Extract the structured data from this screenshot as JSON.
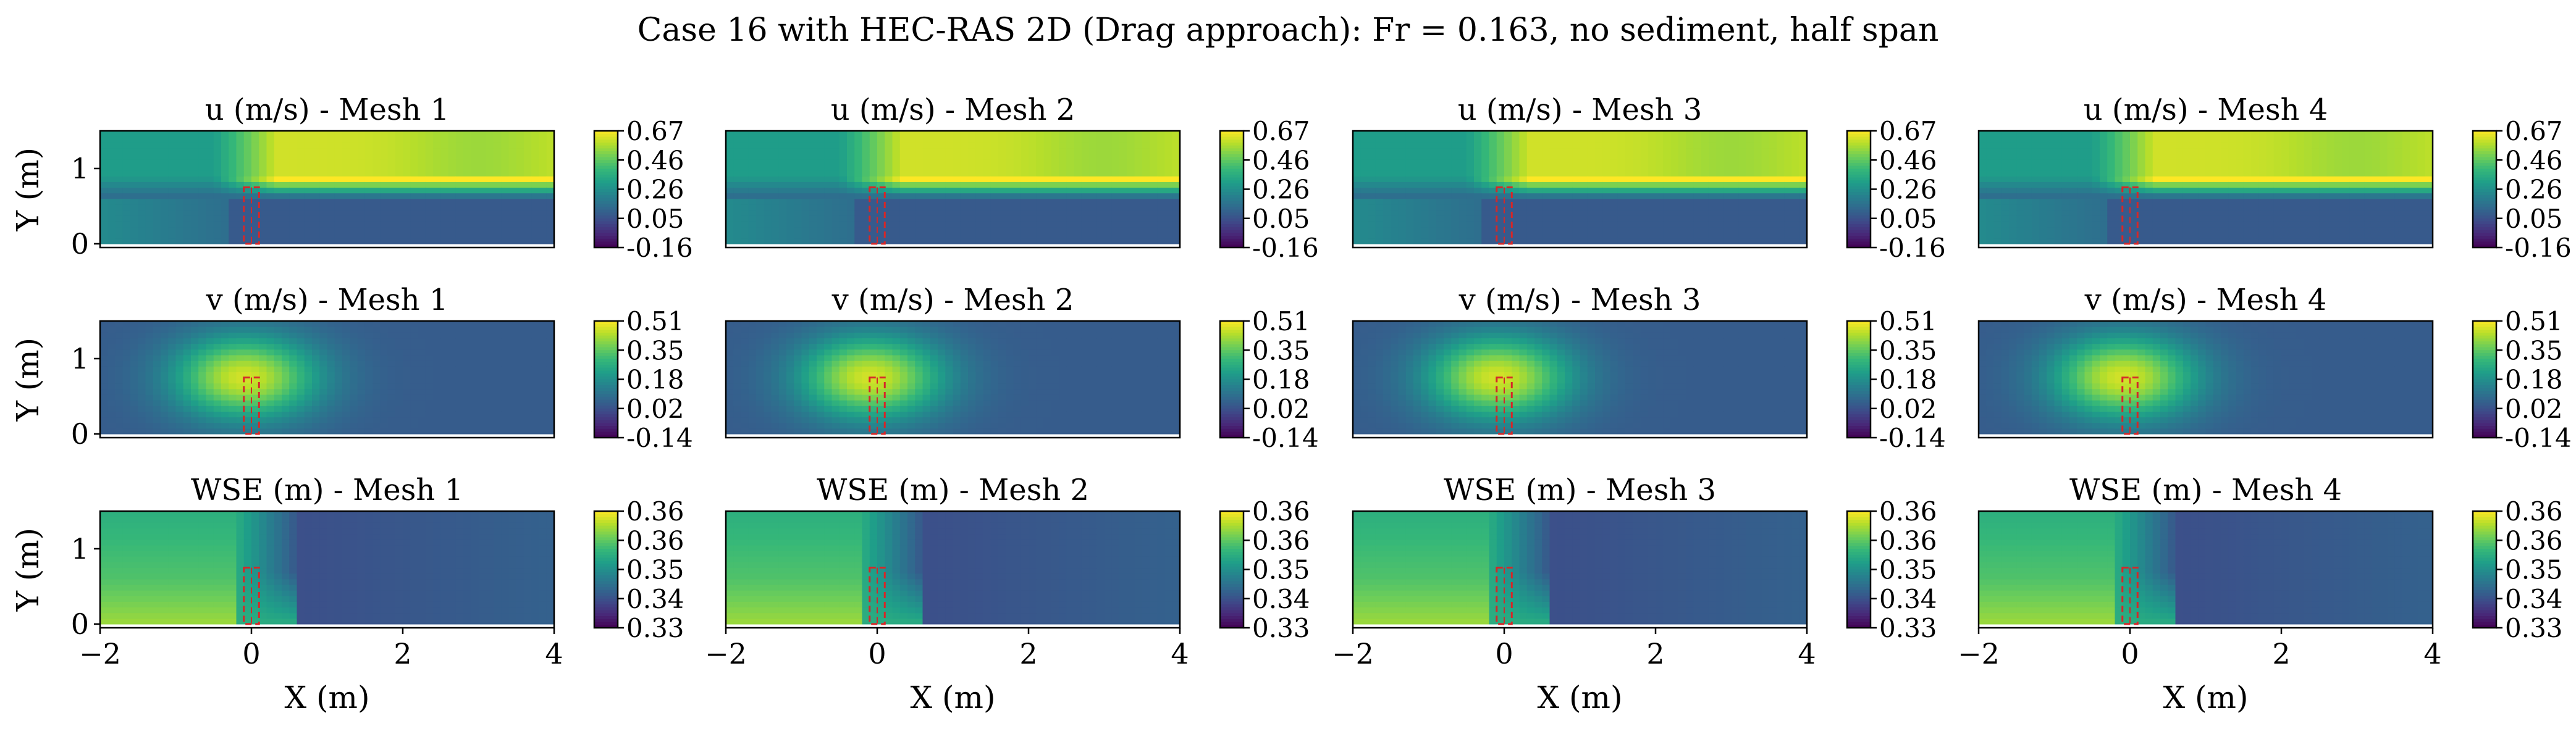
{
  "figure": {
    "title": "Case 16 with HEC-RAS 2D (Drag approach): Fr = 0.163, no sediment, half span"
  },
  "chart_data": [
    {
      "type": "heatmap",
      "variable": "u",
      "title": "u (m/s) - Mesh 1",
      "xlabel": "",
      "ylabel": "Y (m)",
      "xlim": [
        -2,
        4
      ],
      "ylim": [
        -0.05,
        1.5
      ],
      "x_ticks": [],
      "y_ticks": [
        "0",
        "1"
      ],
      "colorbar_ticks": [
        "0.67",
        "0.46",
        "0.26",
        "0.05",
        "-0.16"
      ],
      "clim": [
        -0.16,
        0.67
      ],
      "pier": [
        -0.1,
        0,
        0.1,
        0.75
      ]
    },
    {
      "type": "heatmap",
      "variable": "u",
      "title": "u (m/s) - Mesh 2",
      "xlabel": "",
      "ylabel": "",
      "xlim": [
        -2,
        4
      ],
      "ylim": [
        -0.05,
        1.5
      ],
      "x_ticks": [],
      "y_ticks": [],
      "colorbar_ticks": [
        "0.67",
        "0.46",
        "0.26",
        "0.05",
        "-0.16"
      ],
      "clim": [
        -0.16,
        0.67
      ],
      "pier": [
        -0.1,
        0,
        0.1,
        0.75
      ]
    },
    {
      "type": "heatmap",
      "variable": "u",
      "title": "u (m/s) - Mesh 3",
      "xlabel": "",
      "ylabel": "",
      "xlim": [
        -2,
        4
      ],
      "ylim": [
        -0.05,
        1.5
      ],
      "x_ticks": [],
      "y_ticks": [],
      "colorbar_ticks": [
        "0.67",
        "0.46",
        "0.26",
        "0.05",
        "-0.16"
      ],
      "clim": [
        -0.16,
        0.67
      ],
      "pier": [
        -0.1,
        0,
        0.1,
        0.75
      ]
    },
    {
      "type": "heatmap",
      "variable": "u",
      "title": "u (m/s) - Mesh 4",
      "xlabel": "",
      "ylabel": "",
      "xlim": [
        -2,
        4
      ],
      "ylim": [
        -0.05,
        1.5
      ],
      "x_ticks": [],
      "y_ticks": [],
      "colorbar_ticks": [
        "0.67",
        "0.46",
        "0.26",
        "0.05",
        "-0.16"
      ],
      "clim": [
        -0.16,
        0.67
      ],
      "pier": [
        -0.1,
        0,
        0.1,
        0.75
      ]
    },
    {
      "type": "heatmap",
      "variable": "v",
      "title": "v (m/s) - Mesh 1",
      "xlabel": "",
      "ylabel": "Y (m)",
      "xlim": [
        -2,
        4
      ],
      "ylim": [
        -0.05,
        1.5
      ],
      "x_ticks": [],
      "y_ticks": [
        "0",
        "1"
      ],
      "colorbar_ticks": [
        "0.51",
        "0.35",
        "0.18",
        "0.02",
        "-0.14"
      ],
      "clim": [
        -0.14,
        0.51
      ],
      "pier": [
        -0.1,
        0,
        0.1,
        0.75
      ]
    },
    {
      "type": "heatmap",
      "variable": "v",
      "title": "v (m/s) - Mesh 2",
      "xlabel": "",
      "ylabel": "",
      "xlim": [
        -2,
        4
      ],
      "ylim": [
        -0.05,
        1.5
      ],
      "x_ticks": [],
      "y_ticks": [],
      "colorbar_ticks": [
        "0.51",
        "0.35",
        "0.18",
        "0.02",
        "-0.14"
      ],
      "clim": [
        -0.14,
        0.51
      ],
      "pier": [
        -0.1,
        0,
        0.1,
        0.75
      ]
    },
    {
      "type": "heatmap",
      "variable": "v",
      "title": "v (m/s) - Mesh 3",
      "xlabel": "",
      "ylabel": "",
      "xlim": [
        -2,
        4
      ],
      "ylim": [
        -0.05,
        1.5
      ],
      "x_ticks": [],
      "y_ticks": [],
      "colorbar_ticks": [
        "0.51",
        "0.35",
        "0.18",
        "0.02",
        "-0.14"
      ],
      "clim": [
        -0.14,
        0.51
      ],
      "pier": [
        -0.1,
        0,
        0.1,
        0.75
      ]
    },
    {
      "type": "heatmap",
      "variable": "v",
      "title": "v (m/s) - Mesh 4",
      "xlabel": "",
      "ylabel": "",
      "xlim": [
        -2,
        4
      ],
      "ylim": [
        -0.05,
        1.5
      ],
      "x_ticks": [],
      "y_ticks": [],
      "colorbar_ticks": [
        "0.51",
        "0.35",
        "0.18",
        "0.02",
        "-0.14"
      ],
      "clim": [
        -0.14,
        0.51
      ],
      "pier": [
        -0.1,
        0,
        0.1,
        0.75
      ]
    },
    {
      "type": "heatmap",
      "variable": "wse",
      "title": "WSE (m) - Mesh 1",
      "xlabel": "X (m)",
      "ylabel": "Y (m)",
      "xlim": [
        -2,
        4
      ],
      "ylim": [
        -0.05,
        1.5
      ],
      "x_ticks": [
        "−2",
        "0",
        "2",
        "4"
      ],
      "y_ticks": [
        "0",
        "1"
      ],
      "colorbar_ticks": [
        "0.36",
        "0.36",
        "0.35",
        "0.34",
        "0.33"
      ],
      "clim": [
        0.33,
        0.36
      ],
      "pier": [
        -0.1,
        0,
        0.1,
        0.75
      ]
    },
    {
      "type": "heatmap",
      "variable": "wse",
      "title": "WSE (m) - Mesh 2",
      "xlabel": "X (m)",
      "ylabel": "",
      "xlim": [
        -2,
        4
      ],
      "ylim": [
        -0.05,
        1.5
      ],
      "x_ticks": [
        "−2",
        "0",
        "2",
        "4"
      ],
      "y_ticks": [],
      "colorbar_ticks": [
        "0.36",
        "0.36",
        "0.35",
        "0.34",
        "0.33"
      ],
      "clim": [
        0.33,
        0.36
      ],
      "pier": [
        -0.1,
        0,
        0.1,
        0.75
      ]
    },
    {
      "type": "heatmap",
      "variable": "wse",
      "title": "WSE (m) - Mesh 3",
      "xlabel": "X (m)",
      "ylabel": "",
      "xlim": [
        -2,
        4
      ],
      "ylim": [
        -0.05,
        1.5
      ],
      "x_ticks": [
        "−2",
        "0",
        "2",
        "4"
      ],
      "y_ticks": [],
      "colorbar_ticks": [
        "0.36",
        "0.36",
        "0.35",
        "0.34",
        "0.33"
      ],
      "clim": [
        0.33,
        0.36
      ],
      "pier": [
        -0.1,
        0,
        0.1,
        0.75
      ]
    },
    {
      "type": "heatmap",
      "variable": "wse",
      "title": "WSE (m) - Mesh 4",
      "xlabel": "X (m)",
      "ylabel": "",
      "xlim": [
        -2,
        4
      ],
      "ylim": [
        -0.05,
        1.5
      ],
      "x_ticks": [
        "−2",
        "0",
        "2",
        "4"
      ],
      "y_ticks": [],
      "colorbar_ticks": [
        "0.36",
        "0.36",
        "0.35",
        "0.34",
        "0.33"
      ],
      "clim": [
        0.33,
        0.36
      ],
      "pier": [
        -0.1,
        0,
        0.1,
        0.75
      ]
    }
  ],
  "colors": {
    "colormap": "viridis",
    "viridis": [
      "#440154",
      "#482878",
      "#3e4a89",
      "#31688e",
      "#26828e",
      "#1f9e89",
      "#35b779",
      "#6ece58",
      "#b5de2b",
      "#fde725"
    ],
    "pier_outline": "#d62728"
  }
}
